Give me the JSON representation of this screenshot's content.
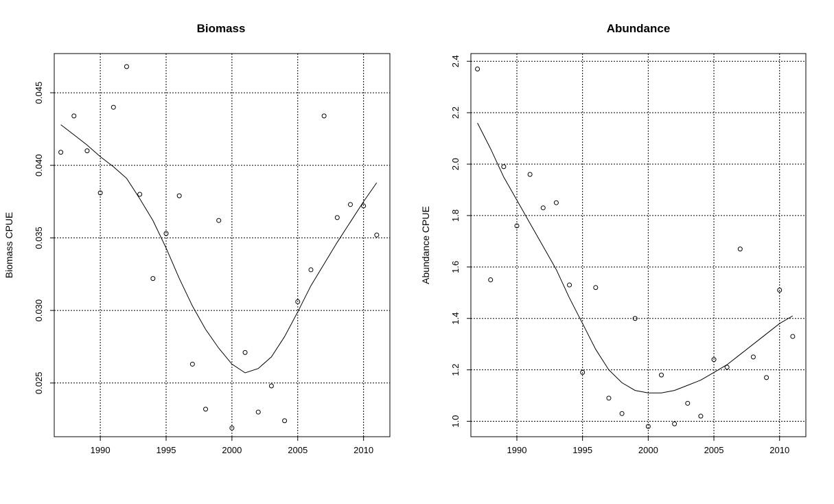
{
  "chart_data": [
    {
      "type": "scatter",
      "title": "Biomass",
      "xlabel": "",
      "ylabel": "Biomass CPUE",
      "xlim": [
        1986.5,
        2012
      ],
      "ylim": [
        0.0213,
        0.0477
      ],
      "xticks": [
        1990,
        1995,
        2000,
        2005,
        2010
      ],
      "yticks": [
        0.025,
        0.03,
        0.035,
        0.04,
        0.045
      ],
      "ytick_labels": [
        "0.025",
        "0.030",
        "0.035",
        "0.040",
        "0.045"
      ],
      "grid": true,
      "points": {
        "x": [
          1987,
          1988,
          1989,
          1990,
          1991,
          1992,
          1993,
          1994,
          1995,
          1996,
          1997,
          1998,
          1999,
          2000,
          2001,
          2002,
          2003,
          2004,
          2005,
          2006,
          2007,
          2008,
          2009,
          2010,
          2011
        ],
        "y": [
          0.0409,
          0.0434,
          0.041,
          0.0381,
          0.044,
          0.0468,
          0.038,
          0.0322,
          0.0353,
          0.0379,
          0.0263,
          0.0232,
          0.0362,
          0.0219,
          0.0271,
          0.023,
          0.0248,
          0.0224,
          0.0306,
          0.0328,
          0.0434,
          0.0364,
          0.0373,
          0.0372,
          0.0352
        ]
      },
      "fit": {
        "x": [
          1987,
          1988,
          1989,
          1990,
          1991,
          1992,
          1993,
          1994,
          1995,
          1996,
          1997,
          1998,
          1999,
          2000,
          2001,
          2002,
          2003,
          2004,
          2005,
          2006,
          2007,
          2008,
          2009,
          2010,
          2011
        ],
        "y": [
          0.0428,
          0.0421,
          0.0414,
          0.0406,
          0.0399,
          0.0391,
          0.0377,
          0.0362,
          0.0343,
          0.0322,
          0.0303,
          0.0287,
          0.0274,
          0.0263,
          0.0257,
          0.026,
          0.0268,
          0.0282,
          0.0299,
          0.0317,
          0.0332,
          0.0347,
          0.0361,
          0.0375,
          0.0388
        ]
      }
    },
    {
      "type": "scatter",
      "title": "Abundance",
      "xlabel": "",
      "ylabel": "Abundance CPUE",
      "xlim": [
        1986.5,
        2012
      ],
      "ylim": [
        0.94,
        2.43
      ],
      "xticks": [
        1990,
        1995,
        2000,
        2005,
        2010
      ],
      "yticks": [
        1.0,
        1.2,
        1.4,
        1.6,
        1.8,
        2.0,
        2.2,
        2.4
      ],
      "ytick_labels": [
        "1.0",
        "1.2",
        "1.4",
        "1.6",
        "1.8",
        "2.0",
        "2.2",
        "2.4"
      ],
      "grid": true,
      "points": {
        "x": [
          1987,
          1988,
          1989,
          1990,
          1991,
          1992,
          1993,
          1994,
          1995,
          1996,
          1997,
          1998,
          1999,
          2000,
          2001,
          2002,
          2003,
          2004,
          2005,
          2006,
          2007,
          2008,
          2009,
          2010,
          2011
        ],
        "y": [
          2.37,
          1.55,
          1.99,
          1.76,
          1.96,
          1.83,
          1.85,
          1.53,
          1.19,
          1.52,
          1.09,
          1.03,
          1.4,
          0.98,
          1.18,
          0.99,
          1.07,
          1.02,
          1.24,
          1.21,
          1.67,
          1.25,
          1.17,
          1.51,
          1.33
        ]
      },
      "fit": {
        "x": [
          1987,
          1988,
          1989,
          1990,
          1991,
          1992,
          1993,
          1994,
          1995,
          1996,
          1997,
          1998,
          1999,
          2000,
          2001,
          2002,
          2003,
          2004,
          2005,
          2006,
          2007,
          2008,
          2009,
          2010,
          2011
        ],
        "y": [
          2.16,
          2.06,
          1.95,
          1.86,
          1.77,
          1.68,
          1.59,
          1.48,
          1.38,
          1.28,
          1.2,
          1.15,
          1.12,
          1.11,
          1.11,
          1.12,
          1.14,
          1.16,
          1.19,
          1.22,
          1.26,
          1.3,
          1.34,
          1.38,
          1.41
        ]
      }
    }
  ]
}
